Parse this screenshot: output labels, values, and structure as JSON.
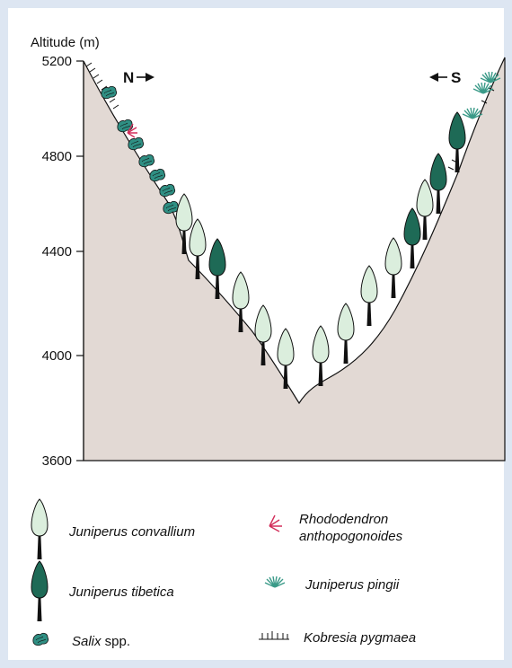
{
  "colors": {
    "frame": "#dde6f2",
    "terrain_fill": "#e2d9d4",
    "juniperus_convallium": "#dbeedd",
    "juniperus_tibetica": "#1e6a56",
    "salix": "#2f8f83",
    "rhododendron": "#d32f5b",
    "juniperus_pingii": "#3a9a88",
    "trunk": "#111111"
  },
  "axis": {
    "title": "Altitude (m)",
    "ticks": [
      {
        "value": 5200,
        "label": "5200"
      },
      {
        "value": 4800,
        "label": "4800"
      },
      {
        "value": 4400,
        "label": "4400"
      },
      {
        "value": 4000,
        "label": "4000"
      },
      {
        "value": 3600,
        "label": "3600"
      }
    ]
  },
  "directions": {
    "north": {
      "label": "N",
      "arrow": "right-arrow-icon"
    },
    "south": {
      "label": "S",
      "arrow": "left-arrow-icon"
    }
  },
  "legend": {
    "juniperus_convallium": {
      "italic": "Juniperus convallium",
      "icon": "light-tree-icon"
    },
    "juniperus_tibetica": {
      "italic": "Juniperus tibetica",
      "icon": "dark-tree-icon"
    },
    "salix": {
      "italic": "Salix",
      "plain": " spp.",
      "icon": "shrub-icon"
    },
    "rhododendron": {
      "italic_line1": "Rhododendron",
      "italic_line2": "anthopogonoides",
      "icon": "red-fan-icon"
    },
    "juniperus_pingii": {
      "italic": "Juniperus pingii",
      "icon": "green-fan-icon"
    },
    "kobresia": {
      "italic": "Kobresia pygmaea",
      "icon": "grass-tuft-icon"
    }
  }
}
